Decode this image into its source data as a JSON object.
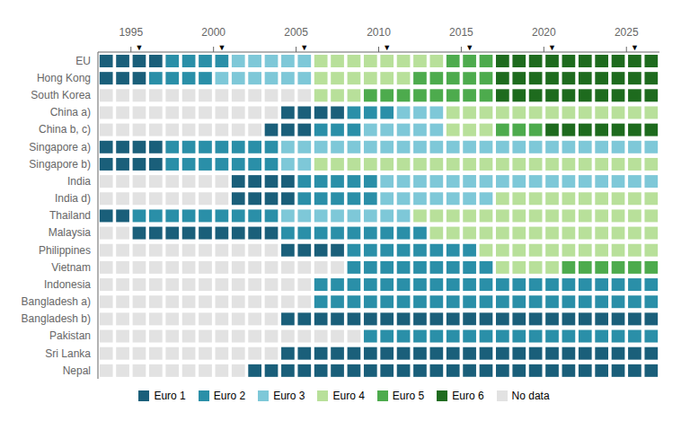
{
  "chart_data": {
    "type": "timeline",
    "orientation": "horizontal",
    "grid": false,
    "legend": "bottom",
    "categories": [
      "EU",
      "Hong Kong",
      "South Korea",
      "China a)",
      "China b, c)",
      "Singapore a)",
      "Singapore b)",
      "India",
      "India d)",
      "Thailand",
      "Malaysia",
      "Philippines",
      "Vietnam",
      "Indonesia",
      "Bangladesh a)",
      "Bangladesh b)",
      "Pakistan",
      "Sri Lanka",
      "Nepal"
    ],
    "xlim": [
      1993,
      2027
    ],
    "xticks": [
      1995,
      2000,
      2005,
      2010,
      2015,
      2020,
      2025
    ],
    "series": [
      {
        "name": "Euro 1",
        "color": "#1a5f7a"
      },
      {
        "name": "Euro 2",
        "color": "#2a8fa8"
      },
      {
        "name": "Euro 3",
        "color": "#7ec8d8"
      },
      {
        "name": "Euro 4",
        "color": "#b8e09a"
      },
      {
        "name": "Euro 5",
        "color": "#4dab4d"
      },
      {
        "name": "Euro 6",
        "color": "#1e6b1e"
      },
      {
        "name": "No data",
        "color": "#e2e2e2"
      }
    ],
    "segments": [
      [
        {
          "from": 1993,
          "to": 1996,
          "series": "Euro 1"
        },
        {
          "from": 1997,
          "to": 2000,
          "series": "Euro 2"
        },
        {
          "from": 2001,
          "to": 2005,
          "series": "Euro 3"
        },
        {
          "from": 2006,
          "to": 2013,
          "series": "Euro 4"
        },
        {
          "from": 2014,
          "to": 2016,
          "series": "Euro 5"
        },
        {
          "from": 2017,
          "to": 2026,
          "series": "Euro 6"
        }
      ],
      [
        {
          "from": 1993,
          "to": 1995,
          "series": "Euro 1"
        },
        {
          "from": 1996,
          "to": 1999,
          "series": "Euro 2"
        },
        {
          "from": 2000,
          "to": 2005,
          "series": "Euro 3"
        },
        {
          "from": 2006,
          "to": 2011,
          "series": "Euro 4"
        },
        {
          "from": 2012,
          "to": 2016,
          "series": "Euro 5"
        },
        {
          "from": 2017,
          "to": 2026,
          "series": "Euro 6"
        }
      ],
      [
        {
          "from": 2006,
          "to": 2008,
          "series": "Euro 4"
        },
        {
          "from": 2009,
          "to": 2016,
          "series": "Euro 5"
        },
        {
          "from": 2017,
          "to": 2026,
          "series": "Euro 6"
        }
      ],
      [
        {
          "from": 2004,
          "to": 2007,
          "series": "Euro 1"
        },
        {
          "from": 2008,
          "to": 2010,
          "series": "Euro 2"
        },
        {
          "from": 2011,
          "to": 2013,
          "series": "Euro 3"
        },
        {
          "from": 2014,
          "to": 2026,
          "series": "Euro 4"
        }
      ],
      [
        {
          "from": 2003,
          "to": 2005,
          "series": "Euro 1"
        },
        {
          "from": 2006,
          "to": 2008,
          "series": "Euro 2"
        },
        {
          "from": 2009,
          "to": 2013,
          "series": "Euro 3"
        },
        {
          "from": 2014,
          "to": 2016,
          "series": "Euro 4"
        },
        {
          "from": 2017,
          "to": 2019,
          "series": "Euro 5"
        },
        {
          "from": 2020,
          "to": 2026,
          "series": "Euro 6"
        }
      ],
      [
        {
          "from": 1993,
          "to": 1996,
          "series": "Euro 1"
        },
        {
          "from": 1997,
          "to": 2003,
          "series": "Euro 2"
        },
        {
          "from": 2004,
          "to": 2026,
          "series": "Euro 3"
        }
      ],
      [
        {
          "from": 1993,
          "to": 1996,
          "series": "Euro 1"
        },
        {
          "from": 1997,
          "to": 2003,
          "series": "Euro 2"
        },
        {
          "from": 2004,
          "to": 2005,
          "series": "Euro 3"
        },
        {
          "from": 2006,
          "to": 2026,
          "series": "Euro 4"
        }
      ],
      [
        {
          "from": 2001,
          "to": 2004,
          "series": "Euro 1"
        },
        {
          "from": 2005,
          "to": 2009,
          "series": "Euro 2"
        },
        {
          "from": 2010,
          "to": 2026,
          "series": "Euro 3"
        }
      ],
      [
        {
          "from": 2001,
          "to": 2004,
          "series": "Euro 1"
        },
        {
          "from": 2005,
          "to": 2009,
          "series": "Euro 2"
        },
        {
          "from": 2010,
          "to": 2016,
          "series": "Euro 3"
        },
        {
          "from": 2017,
          "to": 2026,
          "series": "Euro 4"
        }
      ],
      [
        {
          "from": 1993,
          "to": 1994,
          "series": "Euro 1"
        },
        {
          "from": 1995,
          "to": 2003,
          "series": "Euro 2"
        },
        {
          "from": 2004,
          "to": 2011,
          "series": "Euro 3"
        },
        {
          "from": 2012,
          "to": 2026,
          "series": "Euro 4"
        }
      ],
      [
        {
          "from": 1995,
          "to": 2003,
          "series": "Euro 1"
        },
        {
          "from": 2004,
          "to": 2012,
          "series": "Euro 2"
        },
        {
          "from": 2013,
          "to": 2026,
          "series": "Euro 4"
        }
      ],
      [
        {
          "from": 2004,
          "to": 2007,
          "series": "Euro 1"
        },
        {
          "from": 2008,
          "to": 2015,
          "series": "Euro 2"
        },
        {
          "from": 2016,
          "to": 2026,
          "series": "Euro 4"
        }
      ],
      [
        {
          "from": 2008,
          "to": 2016,
          "series": "Euro 2"
        },
        {
          "from": 2017,
          "to": 2020,
          "series": "Euro 4"
        },
        {
          "from": 2021,
          "to": 2022,
          "series": "Euro 5"
        },
        {
          "from": 2023,
          "to": 2026,
          "series": "Euro 5"
        }
      ],
      [
        {
          "from": 2006,
          "to": 2026,
          "series": "Euro 2"
        }
      ],
      [
        {
          "from": 2006,
          "to": 2026,
          "series": "Euro 2"
        }
      ],
      [
        {
          "from": 2004,
          "to": 2026,
          "series": "Euro 1"
        }
      ],
      [
        {
          "from": 2009,
          "to": 2026,
          "series": "Euro 2"
        }
      ],
      [
        {
          "from": 2004,
          "to": 2026,
          "series": "Euro 1"
        }
      ],
      [
        {
          "from": 2002,
          "to": 2026,
          "series": "Euro 1"
        }
      ]
    ],
    "annotations": [
      {
        "text": "▼",
        "x": 1995
      },
      {
        "text": "▼",
        "x": 2000
      },
      {
        "text": "▼",
        "x": 2005
      },
      {
        "text": "▼",
        "x": 2010
      },
      {
        "text": "▼",
        "x": 2015
      },
      {
        "text": "▼",
        "x": 2020
      },
      {
        "text": "▼",
        "x": 2025
      }
    ]
  }
}
